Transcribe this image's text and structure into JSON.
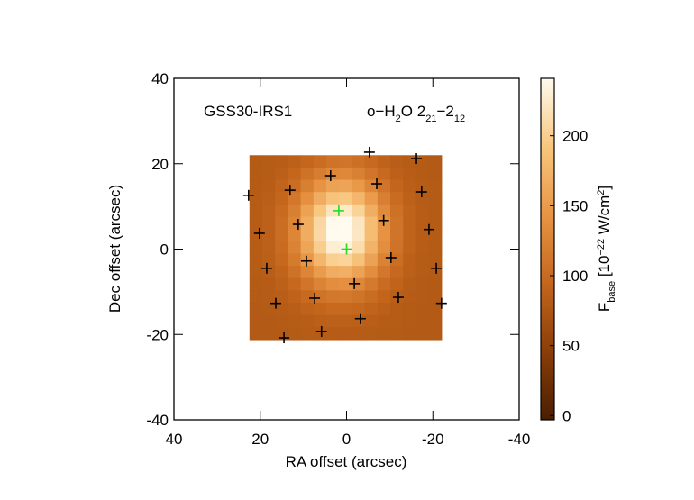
{
  "chart_data": {
    "type": "heatmap",
    "xlabel": "RA offset (arcsec)",
    "ylabel": "Dec offset (arcsec)",
    "xlim": [
      40,
      -40
    ],
    "ylim": [
      -40,
      40
    ],
    "xticks": [
      40,
      20,
      0,
      -20,
      -40
    ],
    "yticks": [
      -40,
      -20,
      0,
      20,
      40
    ],
    "extent": {
      "x": [
        22.5,
        -22
      ],
      "y": [
        22,
        -21.2
      ]
    },
    "z": [
      [
        81,
        82,
        84,
        88,
        95,
        102,
        108,
        109,
        105,
        98,
        90,
        85,
        82,
        81,
        80
      ],
      [
        81,
        83,
        87,
        95,
        107,
        119,
        129,
        131,
        123,
        111,
        98,
        89,
        84,
        81,
        80
      ],
      [
        81,
        84,
        91,
        103,
        122,
        142,
        157,
        159,
        148,
        129,
        109,
        94,
        86,
        82,
        81
      ],
      [
        82,
        86,
        95,
        113,
        139,
        168,
        189,
        193,
        177,
        150,
        121,
        101,
        88,
        83,
        81
      ],
      [
        83,
        88,
        100,
        122,
        156,
        193,
        220,
        225,
        204,
        169,
        133,
        106,
        91,
        84,
        81
      ],
      [
        83,
        89,
        103,
        128,
        167,
        208,
        240,
        245,
        222,
        182,
        140,
        110,
        92,
        84,
        81
      ],
      [
        83,
        89,
        103,
        129,
        168,
        210,
        242,
        247,
        223,
        183,
        141,
        110,
        92,
        84,
        81
      ],
      [
        83,
        88,
        101,
        125,
        160,
        199,
        229,
        233,
        212,
        174,
        136,
        108,
        91,
        84,
        81
      ],
      [
        82,
        87,
        97,
        117,
        145,
        177,
        201,
        205,
        187,
        157,
        125,
        103,
        89,
        83,
        81
      ],
      [
        82,
        85,
        92,
        107,
        128,
        151,
        168,
        171,
        158,
        136,
        113,
        97,
        87,
        82,
        81
      ],
      [
        81,
        83,
        88,
        97,
        111,
        126,
        137,
        139,
        131,
        116,
        101,
        91,
        84,
        81,
        80
      ],
      [
        81,
        82,
        85,
        90,
        99,
        108,
        114,
        115,
        110,
        102,
        93,
        86,
        83,
        81,
        80
      ],
      [
        80,
        81,
        83,
        85,
        90,
        94,
        98,
        99,
        96,
        91,
        87,
        83,
        81,
        80,
        80
      ],
      [
        80,
        80,
        81,
        82,
        84,
        87,
        88,
        88,
        87,
        85,
        83,
        82,
        81,
        80,
        80
      ],
      [
        80,
        80,
        80,
        81,
        82,
        83,
        83,
        83,
        83,
        82,
        81,
        81,
        80,
        80,
        80
      ]
    ],
    "zlim": [
      -3,
      241
    ],
    "zticks": [
      0,
      50,
      100,
      150,
      200
    ],
    "colormap": [
      "#4a1e02",
      "#8a3e08",
      "#c4661c",
      "#e89444",
      "#f8c67e",
      "#fffbee"
    ],
    "colorbar_label": [
      {
        "text": "F"
      },
      {
        "text": "base",
        "sub": true
      },
      {
        "text": " [10"
      },
      {
        "text": "−22",
        "sup": true
      },
      {
        "text": " W/cm"
      },
      {
        "text": "2",
        "sup": true
      },
      {
        "text": "]"
      }
    ],
    "source_label": "GSS30-IRS1",
    "line_label": [
      {
        "text": "o−H"
      },
      {
        "text": "2",
        "sub": true
      },
      {
        "text": "O 2"
      },
      {
        "text": "21",
        "sub": true
      },
      {
        "text": "−2"
      },
      {
        "text": "12",
        "sub": true
      }
    ],
    "series": [
      {
        "name": null,
        "color": "#000000",
        "x": [
          -5.3,
          -16.2,
          22.7,
          13.1,
          3.7,
          -7,
          -17.4,
          11.2,
          -8.6,
          -19.1,
          20.2,
          9.3,
          -10.3,
          -20.8,
          18.5,
          -1.8,
          7.4,
          -12,
          16.4,
          -22,
          -3.2,
          5.8,
          14.5
        ],
        "y": [
          22.7,
          21.2,
          12.6,
          13.8,
          17.2,
          15.3,
          13.4,
          5.8,
          6.7,
          4.6,
          3.7,
          -2.8,
          -2,
          -4.5,
          -4.5,
          -8.1,
          -11.5,
          -11.3,
          -12.7,
          -12.7,
          -16.3,
          -19.3,
          -20.8
        ]
      },
      {
        "name": null,
        "color": "#22dd22",
        "x": [
          1.8,
          0
        ],
        "y": [
          9,
          0
        ]
      }
    ]
  }
}
